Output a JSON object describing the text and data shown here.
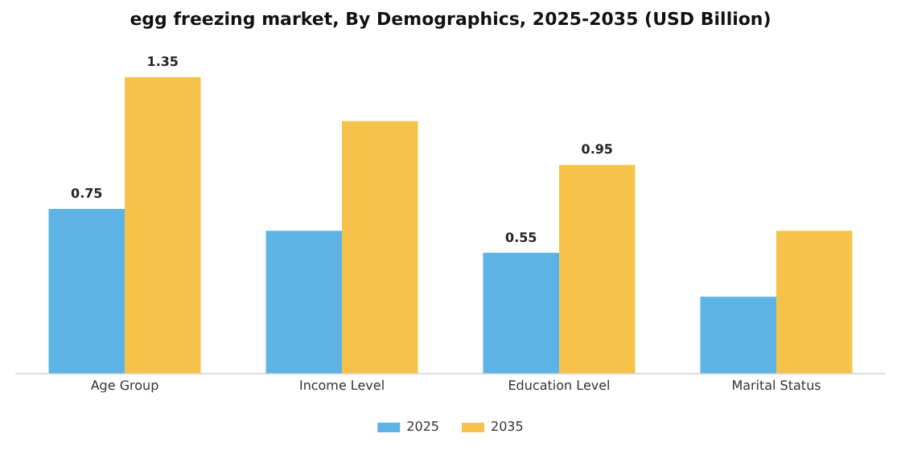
{
  "chart_data": {
    "type": "bar",
    "title": "egg freezing market, By Demographics, 2025-2035 (USD Billion)",
    "categories": [
      "Age Group",
      "Income Level",
      "Education Level",
      "Marital Status"
    ],
    "series": [
      {
        "name": "2025",
        "color": "#5db3e6",
        "values": [
          0.75,
          0.65,
          0.55,
          0.35
        ],
        "value_labels": [
          "0.75",
          null,
          "0.55",
          null
        ]
      },
      {
        "name": "2035",
        "color": "#f7c24a",
        "values": [
          1.35,
          1.15,
          0.95,
          0.65
        ],
        "value_labels": [
          "1.35",
          null,
          "0.95",
          null
        ]
      }
    ],
    "tick_labels": "x",
    "grid": false,
    "legend": "bottom"
  }
}
